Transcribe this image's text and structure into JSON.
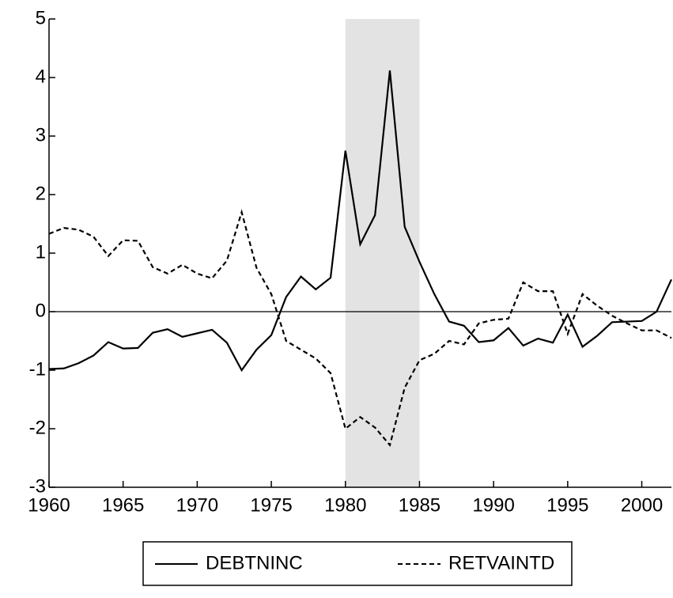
{
  "chart_data": {
    "type": "line",
    "x": [
      1960,
      1961,
      1962,
      1963,
      1964,
      1965,
      1966,
      1967,
      1968,
      1969,
      1970,
      1971,
      1972,
      1973,
      1974,
      1975,
      1976,
      1977,
      1978,
      1979,
      1980,
      1981,
      1982,
      1983,
      1984,
      1985,
      1986,
      1987,
      1988,
      1989,
      1990,
      1991,
      1992,
      1993,
      1994,
      1995,
      1996,
      1997,
      1998,
      1999,
      2000,
      2001,
      2002
    ],
    "series": [
      {
        "name": "DEBTNINC",
        "color": "#000000",
        "dash": "solid",
        "values": [
          -0.98,
          -0.97,
          -0.88,
          -0.75,
          -0.52,
          -0.63,
          -0.62,
          -0.36,
          -0.3,
          -0.43,
          -0.37,
          -0.31,
          -0.53,
          -1.0,
          -0.65,
          -0.4,
          0.25,
          0.6,
          0.38,
          0.58,
          2.75,
          1.15,
          1.65,
          4.12,
          1.45,
          0.85,
          0.3,
          -0.17,
          -0.24,
          -0.52,
          -0.49,
          -0.28,
          -0.58,
          -0.46,
          -0.53,
          -0.05,
          -0.6,
          -0.41,
          -0.18,
          -0.17,
          -0.16,
          0.0,
          0.55
        ]
      },
      {
        "name": "RETVAINTD",
        "color": "#000000",
        "dash": "dashed",
        "values": [
          1.33,
          1.43,
          1.4,
          1.28,
          0.95,
          1.22,
          1.21,
          0.76,
          0.65,
          0.8,
          0.65,
          0.57,
          0.87,
          1.7,
          0.75,
          0.3,
          -0.5,
          -0.65,
          -0.8,
          -1.05,
          -2.0,
          -1.8,
          -1.98,
          -2.28,
          -1.3,
          -0.83,
          -0.72,
          -0.5,
          -0.56,
          -0.2,
          -0.14,
          -0.12,
          0.5,
          0.35,
          0.35,
          -0.38,
          0.3,
          0.1,
          -0.07,
          -0.2,
          -0.32,
          -0.32,
          -0.45
        ]
      }
    ],
    "xlim": [
      1960,
      2002
    ],
    "xticks": [
      1960,
      1965,
      1970,
      1975,
      1980,
      1985,
      1990,
      1995,
      2000
    ],
    "ylim": [
      -3,
      5
    ],
    "yticks": [
      -3,
      -2,
      -1,
      0,
      1,
      2,
      3,
      4,
      5
    ],
    "shaded_x": [
      1980,
      1985
    ],
    "shade_color": "#e3e3e3",
    "zero_line": true,
    "legend": "bottom"
  }
}
